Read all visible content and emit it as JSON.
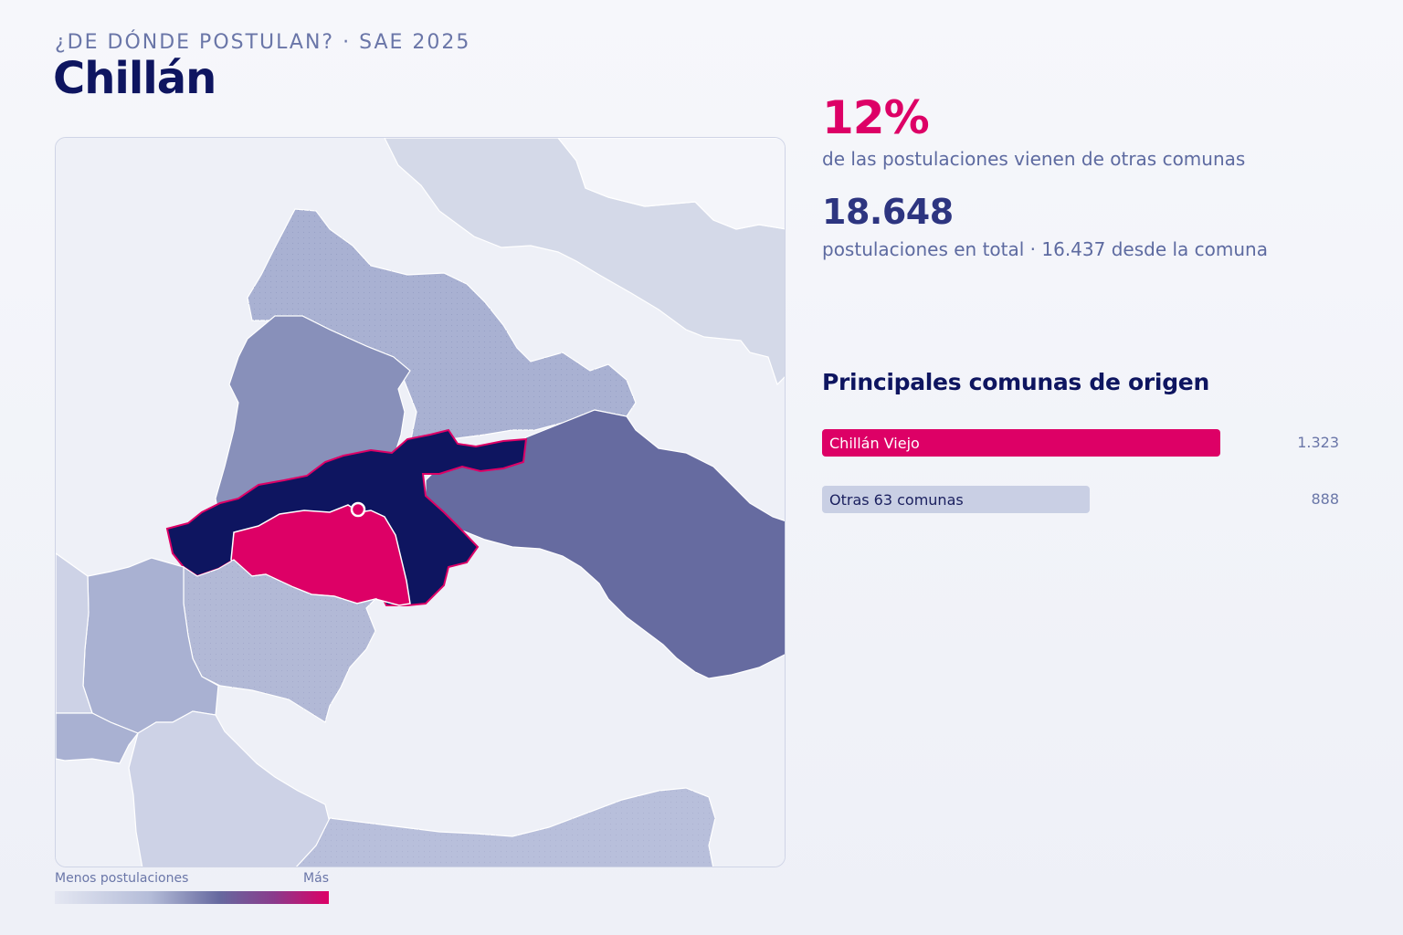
{
  "header": {
    "eyebrow": "¿DE DÓNDE POSTULAN? · SAE 2025",
    "title": "Chillán"
  },
  "stats": {
    "percent": "12%",
    "percent_caption": "de las postulaciones vienen de otras comunas",
    "total": "18.648",
    "total_caption": "postulaciones en total · 16.437 desde la comuna"
  },
  "origins": {
    "title": "Principales comunas de origen",
    "items": [
      {
        "label": "Chillán Viejo",
        "value": "1.323",
        "count": 1323,
        "color": "#dd0066",
        "text_color": "#ffffff"
      },
      {
        "label": "Otras 63 comunas",
        "value": "888",
        "count": 888,
        "color": "#c9cfe4",
        "text_color": "#1a1f5e"
      }
    ]
  },
  "legend": {
    "low": "Menos postulaciones",
    "high": "Más",
    "colors": [
      "#e4e7f2",
      "#b4bcd8",
      "#66699f",
      "#dd0066"
    ]
  },
  "map": {
    "highlight_color": "#dd0066",
    "selected_color": "#0e1560",
    "region_colors": {
      "lightest": "#d4d9e8",
      "light": "#b2b9d6",
      "medium": "#8890ba",
      "dark": "#666ba0"
    }
  }
}
